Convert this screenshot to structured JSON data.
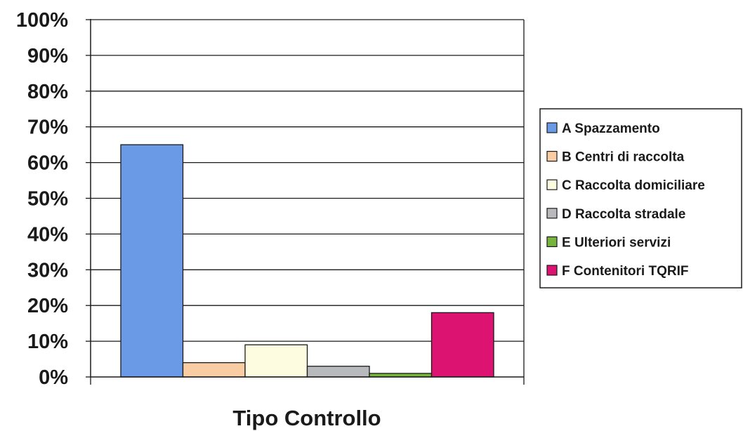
{
  "chart_data": {
    "type": "bar",
    "xlabel": "Tipo Controllo",
    "ylabel": "",
    "ylim": [
      0,
      100
    ],
    "yticks": [
      "0%",
      "10%",
      "20%",
      "30%",
      "40%",
      "50%",
      "60%",
      "70%",
      "80%",
      "90%",
      "100%"
    ],
    "grid": true,
    "legend_position": "right",
    "series": [
      {
        "name": "A Spazzamento",
        "value": 65,
        "color": "#6a9ae6"
      },
      {
        "name": "B Centri di raccolta",
        "value": 4,
        "color": "#f8cda4"
      },
      {
        "name": "C Raccolta domiciliare",
        "value": 9,
        "color": "#fdfce0"
      },
      {
        "name": "D Raccolta stradale",
        "value": 3,
        "color": "#b7b9bc"
      },
      {
        "name": "E Ulteriori servizi",
        "value": 1,
        "color": "#76b43e"
      },
      {
        "name": "F Contenitori TQRIF",
        "value": 18,
        "color": "#dc1370"
      }
    ]
  }
}
